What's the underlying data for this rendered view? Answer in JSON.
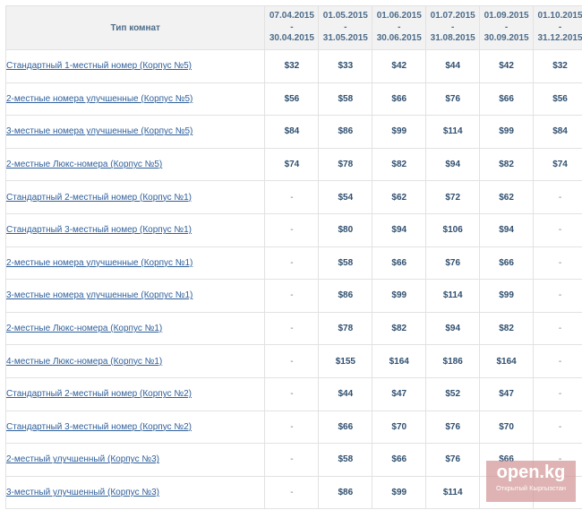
{
  "table": {
    "header": {
      "type_label": "Тип комнат",
      "periods": [
        {
          "from": "07.04.2015",
          "sep": "-",
          "to": "30.04.2015"
        },
        {
          "from": "01.05.2015",
          "sep": "-",
          "to": "31.05.2015"
        },
        {
          "from": "01.06.2015",
          "sep": "-",
          "to": "30.06.2015"
        },
        {
          "from": "01.07.2015",
          "sep": "-",
          "to": "31.08.2015"
        },
        {
          "from": "01.09.2015",
          "sep": "-",
          "to": "30.09.2015"
        },
        {
          "from": "01.10.2015",
          "sep": "-",
          "to": "31.12.2015"
        }
      ]
    },
    "rows": [
      {
        "name": "Стандартный 1-местный номер (Корпус №5)",
        "prices": [
          "$32",
          "$33",
          "$42",
          "$44",
          "$42",
          "$32"
        ]
      },
      {
        "name": "2-местные номера улучшенные (Корпус №5)",
        "prices": [
          "$56",
          "$58",
          "$66",
          "$76",
          "$66",
          "$56"
        ]
      },
      {
        "name": "3-местные номера улучшенные (Корпус №5)",
        "prices": [
          "$84",
          "$86",
          "$99",
          "$114",
          "$99",
          "$84"
        ]
      },
      {
        "name": "2-местные Люкс-номера (Корпус №5)",
        "prices": [
          "$74",
          "$78",
          "$82",
          "$94",
          "$82",
          "$74"
        ]
      },
      {
        "name": "Стандартный 2-местный номер (Корпус №1)",
        "prices": [
          "-",
          "$54",
          "$62",
          "$72",
          "$62",
          "-"
        ]
      },
      {
        "name": "Стандартный 3-местный номер (Корпус №1)",
        "prices": [
          "-",
          "$80",
          "$94",
          "$106",
          "$94",
          "-"
        ]
      },
      {
        "name": "2-местные номера улучшенные (Корпус №1)",
        "prices": [
          "-",
          "$58",
          "$66",
          "$76",
          "$66",
          "-"
        ]
      },
      {
        "name": "3-местные номера улучшенные (Корпус №1)",
        "prices": [
          "-",
          "$86",
          "$99",
          "$114",
          "$99",
          "-"
        ]
      },
      {
        "name": "2-местные Люкс-номера (Корпус №1)",
        "prices": [
          "-",
          "$78",
          "$82",
          "$94",
          "$82",
          "-"
        ]
      },
      {
        "name": "4-местные Люкс-номера (Корпус №1)",
        "prices": [
          "-",
          "$155",
          "$164",
          "$186",
          "$164",
          "-"
        ]
      },
      {
        "name": "Стандартный 2-местный номер (Корпус №2)",
        "prices": [
          "-",
          "$44",
          "$47",
          "$52",
          "$47",
          "-"
        ]
      },
      {
        "name": "Стандартный 3-местный номер (Корпус №2)",
        "prices": [
          "-",
          "$66",
          "$70",
          "$76",
          "$70",
          "-"
        ]
      },
      {
        "name": "2-местный улучшенный (Корпус №3)",
        "prices": [
          "-",
          "$58",
          "$66",
          "$76",
          "$66",
          "-"
        ]
      },
      {
        "name": "3-местный улучшенный (Корпус №3)",
        "prices": [
          "-",
          "$86",
          "$99",
          "$114",
          "",
          ""
        ]
      }
    ]
  },
  "watermark": {
    "logo": "open.kg",
    "caption": "Открытый Кыргызстан"
  }
}
